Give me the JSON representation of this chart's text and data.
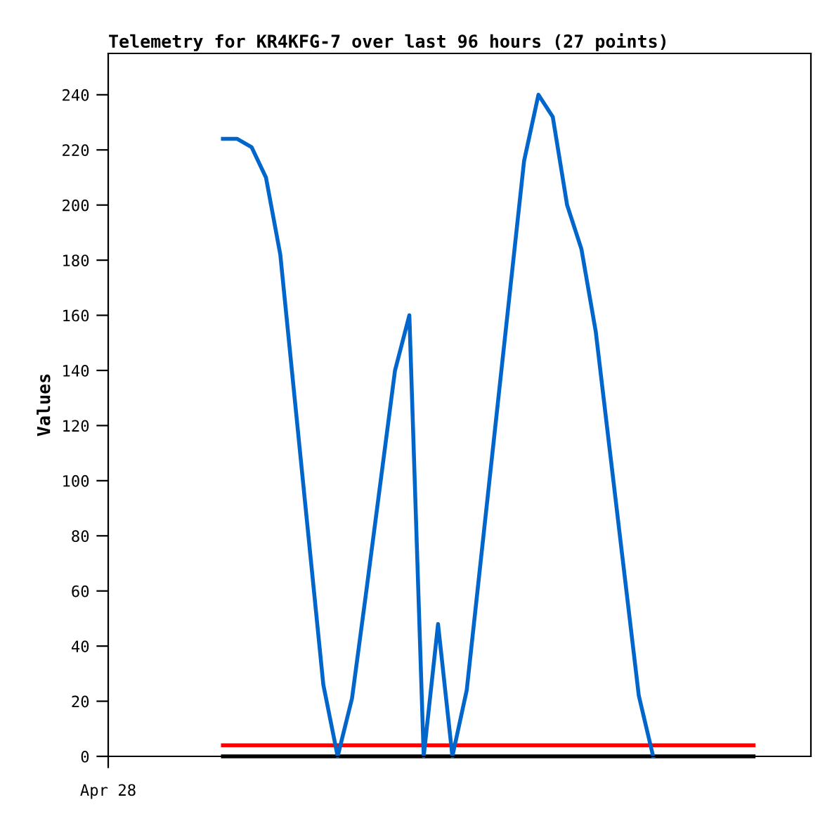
{
  "chart_data": {
    "type": "line",
    "title": "Telemetry for KR4KFG-7 over last 96 hours (27 points)",
    "ylabel": "Values",
    "categories": [
      "Apr 28",
      null,
      null,
      null,
      null,
      null,
      null,
      null,
      null,
      null,
      null,
      null,
      null,
      null,
      null,
      null,
      null,
      null,
      null,
      null,
      null,
      null,
      null,
      null,
      null,
      null,
      null,
      null,
      null,
      null,
      null,
      null,
      null,
      null,
      null,
      null,
      null,
      null,
      null,
      null,
      null,
      null,
      null,
      null,
      null,
      null,
      null,
      null,
      null,
      null
    ],
    "ylim": [
      0,
      255
    ],
    "yticks": [
      0,
      20,
      40,
      60,
      80,
      100,
      120,
      140,
      160,
      180,
      200,
      220,
      240
    ],
    "grid": false,
    "marker": "none",
    "line_style": "solid",
    "series": [
      {
        "color": "#000000",
        "values": [
          null,
          null,
          null,
          null,
          null,
          null,
          null,
          null,
          0,
          0,
          0,
          0,
          0,
          0,
          0,
          0,
          0,
          0,
          0,
          0,
          0,
          0,
          0,
          0,
          0,
          0,
          0,
          0,
          0,
          0,
          0,
          0,
          0,
          0,
          0,
          0,
          0,
          0,
          0,
          0,
          0,
          0,
          0,
          0,
          0,
          0,
          null,
          null,
          null,
          null
        ]
      },
      {
        "color": "#ff0000",
        "values": [
          null,
          null,
          null,
          null,
          null,
          null,
          null,
          null,
          4,
          4,
          4,
          4,
          4,
          4,
          4,
          4,
          4,
          4,
          4,
          4,
          4,
          4,
          4,
          4,
          4,
          4,
          4,
          4,
          4,
          4,
          4,
          4,
          4,
          4,
          4,
          4,
          4,
          4,
          4,
          4,
          4,
          4,
          4,
          4,
          4,
          4,
          null,
          null,
          null,
          null
        ]
      },
      {
        "color": "#0066cc",
        "values": [
          null,
          null,
          null,
          null,
          null,
          null,
          null,
          null,
          224,
          224,
          221,
          210,
          182,
          130,
          78,
          26,
          0,
          21,
          60,
          100,
          140,
          160,
          0,
          48,
          0,
          24,
          72,
          120,
          168,
          216,
          240,
          232,
          200,
          184,
          154,
          110,
          66,
          22,
          0,
          null,
          null,
          null,
          null,
          null,
          null,
          null,
          null,
          null,
          null,
          null
        ]
      }
    ]
  }
}
